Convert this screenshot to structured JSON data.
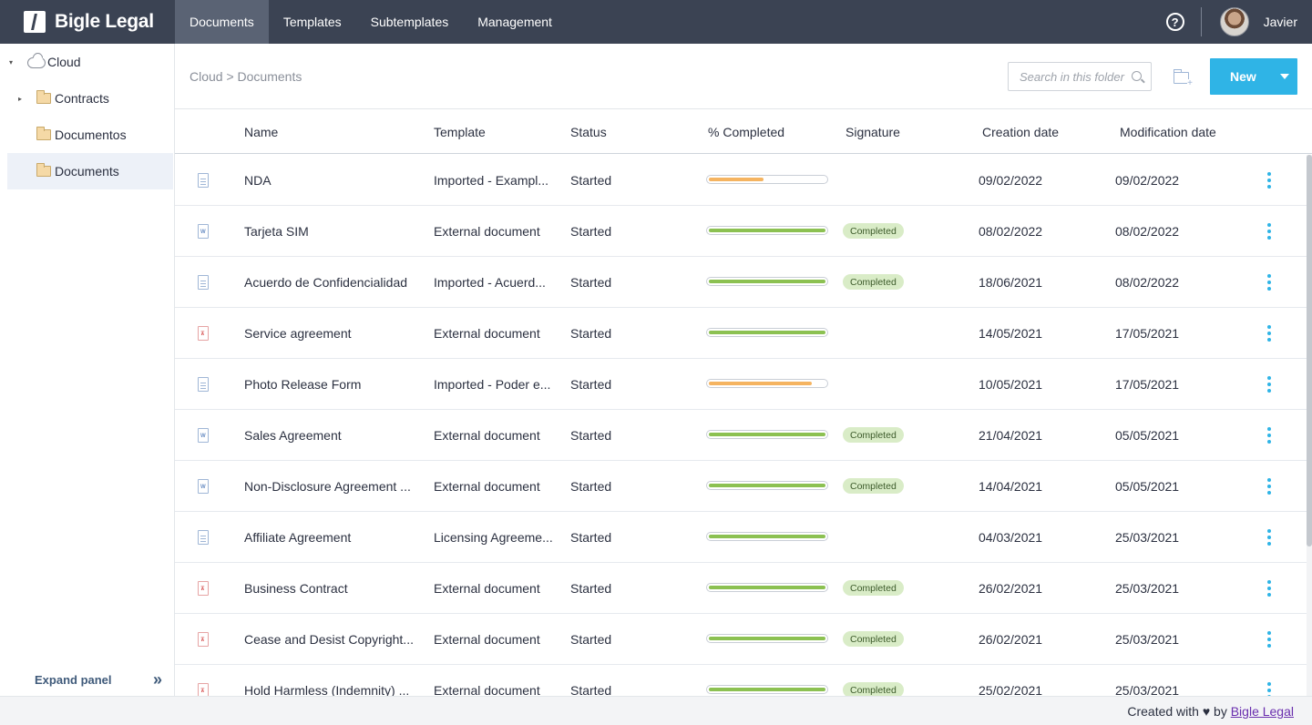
{
  "brand": {
    "name": "Bigle Legal"
  },
  "nav": [
    {
      "label": "Documents",
      "active": true
    },
    {
      "label": "Templates",
      "active": false
    },
    {
      "label": "Subtemplates",
      "active": false
    },
    {
      "label": "Management",
      "active": false
    }
  ],
  "user": {
    "name": "Javier",
    "help_icon": "?"
  },
  "tree": [
    {
      "label": "Cloud",
      "icon": "cloud-icon",
      "caret": "▾"
    },
    {
      "label": "Contracts",
      "icon": "folder-icon",
      "caret": "▸"
    },
    {
      "label": "Documentos",
      "icon": "folder-icon",
      "caret": ""
    },
    {
      "label": "Documents",
      "icon": "folder-icon",
      "caret": "",
      "selected": true
    }
  ],
  "sidebar": {
    "expand_label": "Expand panel",
    "expand_icon": "»"
  },
  "breadcrumb": "Cloud > Documents",
  "search": {
    "placeholder": "Search in this folder"
  },
  "new_button": {
    "label": "New"
  },
  "columns": [
    "Name",
    "Template",
    "Status",
    "% Completed",
    "Signature",
    "Creation date",
    "Modification date"
  ],
  "colors": {
    "accent": "#2fb4e6",
    "progress_green": "#8cc152",
    "progress_orange": "#f5b461",
    "nav_bg": "#3b4353"
  },
  "rows": [
    {
      "icon": "doc",
      "name": "NDA",
      "template": "Imported - Exampl...",
      "status": "Started",
      "progress": 0.47,
      "signature": "",
      "created": "09/02/2022",
      "modified": "09/02/2022"
    },
    {
      "icon": "word",
      "name": "Tarjeta SIM",
      "template": "External document",
      "status": "Started",
      "progress": 1.0,
      "signature": "Completed",
      "created": "08/02/2022",
      "modified": "08/02/2022"
    },
    {
      "icon": "doc",
      "name": "Acuerdo de Confidencialidad",
      "template": "Imported - Acuerd...",
      "status": "Started",
      "progress": 1.0,
      "signature": "Completed",
      "created": "18/06/2021",
      "modified": "08/02/2022"
    },
    {
      "icon": "pdf",
      "name": "Service agreement",
      "template": "External document",
      "status": "Started",
      "progress": 1.0,
      "signature": "",
      "created": "14/05/2021",
      "modified": "17/05/2021"
    },
    {
      "icon": "doc",
      "name": "Photo Release Form",
      "template": "Imported - Poder e...",
      "status": "Started",
      "progress": 0.88,
      "signature": "",
      "created": "10/05/2021",
      "modified": "17/05/2021"
    },
    {
      "icon": "word",
      "name": "Sales Agreement",
      "template": "External document",
      "status": "Started",
      "progress": 1.0,
      "signature": "Completed",
      "created": "21/04/2021",
      "modified": "05/05/2021"
    },
    {
      "icon": "word",
      "name": "Non-Disclosure Agreement ...",
      "template": "External document",
      "status": "Started",
      "progress": 1.0,
      "signature": "Completed",
      "created": "14/04/2021",
      "modified": "05/05/2021"
    },
    {
      "icon": "doc",
      "name": "Affiliate Agreement",
      "template": "Licensing Agreeme...",
      "status": "Started",
      "progress": 1.0,
      "signature": "",
      "created": "04/03/2021",
      "modified": "25/03/2021"
    },
    {
      "icon": "pdf",
      "name": "Business Contract",
      "template": "External document",
      "status": "Started",
      "progress": 1.0,
      "signature": "Completed",
      "created": "26/02/2021",
      "modified": "25/03/2021"
    },
    {
      "icon": "pdf",
      "name": "Cease and Desist Copyright...",
      "template": "External document",
      "status": "Started",
      "progress": 1.0,
      "signature": "Completed",
      "created": "26/02/2021",
      "modified": "25/03/2021"
    },
    {
      "icon": "pdf",
      "name": "Hold Harmless (Indemnity) ...",
      "template": "External document",
      "status": "Started",
      "progress": 1.0,
      "signature": "Completed",
      "created": "25/02/2021",
      "modified": "25/03/2021"
    }
  ],
  "footer": {
    "prefix": "Created with",
    "heart": "♥",
    "by": "by",
    "link": "Bigle Legal"
  }
}
